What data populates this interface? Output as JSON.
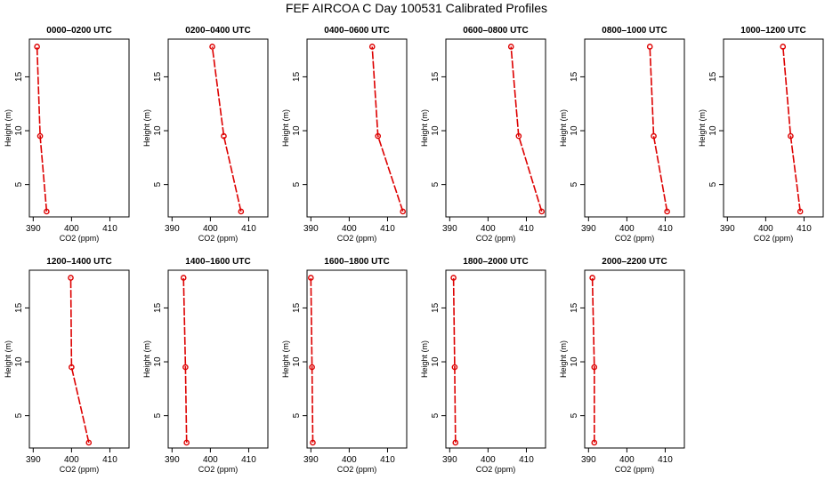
{
  "title": "FEF AIRCOA C  Day 100531  Calibrated Profiles",
  "chart_data": {
    "type": "line",
    "xlabel": "CO2 (ppm)",
    "ylabel": "Height (m)",
    "xlim": [
      389,
      415
    ],
    "ylim": [
      2,
      18.5
    ],
    "x_ticks": [
      390,
      400,
      410
    ],
    "y_ticks": [
      5,
      10,
      15
    ],
    "line_color": "#dd0000",
    "panels": [
      {
        "title": "0000–0200 UTC",
        "points": [
          [
            393.5,
            2.5
          ],
          [
            391.8,
            9.5
          ],
          [
            391.0,
            17.8
          ]
        ]
      },
      {
        "title": "0200–0400 UTC",
        "points": [
          [
            408.0,
            2.5
          ],
          [
            403.5,
            9.5
          ],
          [
            400.5,
            17.8
          ]
        ]
      },
      {
        "title": "0400–0600 UTC",
        "points": [
          [
            414.0,
            2.5
          ],
          [
            407.5,
            9.5
          ],
          [
            406.0,
            17.8
          ]
        ]
      },
      {
        "title": "0600–0800 UTC",
        "points": [
          [
            414.0,
            2.5
          ],
          [
            408.0,
            9.5
          ],
          [
            406.0,
            17.8
          ]
        ]
      },
      {
        "title": "0800–1000 UTC",
        "points": [
          [
            410.5,
            2.5
          ],
          [
            407.0,
            9.5
          ],
          [
            406.0,
            17.8
          ]
        ]
      },
      {
        "title": "1000–1200 UTC",
        "points": [
          [
            409.0,
            2.5
          ],
          [
            406.5,
            9.5
          ],
          [
            404.5,
            17.8
          ]
        ]
      },
      {
        "title": "1200–1400 UTC",
        "points": [
          [
            404.5,
            2.5
          ],
          [
            400.0,
            9.5
          ],
          [
            399.8,
            17.8
          ]
        ]
      },
      {
        "title": "1400–1600 UTC",
        "points": [
          [
            393.8,
            2.5
          ],
          [
            393.5,
            9.5
          ],
          [
            393.0,
            17.8
          ]
        ]
      },
      {
        "title": "1600–1800 UTC",
        "points": [
          [
            390.5,
            2.5
          ],
          [
            390.3,
            9.5
          ],
          [
            390.0,
            17.8
          ]
        ]
      },
      {
        "title": "1800–2000 UTC",
        "points": [
          [
            391.5,
            2.5
          ],
          [
            391.3,
            9.5
          ],
          [
            391.0,
            17.8
          ]
        ]
      },
      {
        "title": "2000–2200 UTC",
        "points": [
          [
            391.5,
            2.5
          ],
          [
            391.5,
            9.5
          ],
          [
            391.0,
            17.8
          ]
        ]
      }
    ]
  }
}
